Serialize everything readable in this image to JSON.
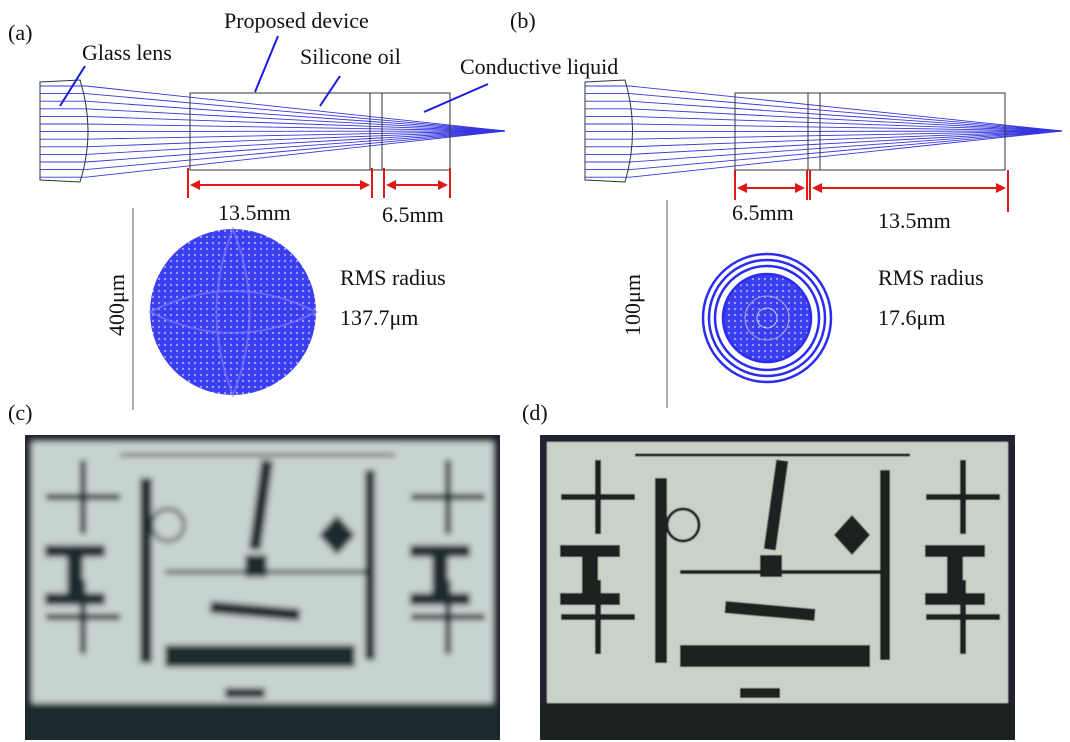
{
  "panels": {
    "a": {
      "label": "(a)",
      "annotations": [
        "Glass lens",
        "Proposed device",
        "Silicone oil",
        "Conductive liquid"
      ],
      "dimensions": [
        "13.5mm",
        "6.5mm"
      ],
      "scale_bar": "400μm",
      "rms_label": "RMS radius",
      "rms_value": "137.7μm"
    },
    "b": {
      "label": "(b)",
      "dimensions": [
        "6.5mm",
        "13.5mm"
      ],
      "scale_bar": "100μm",
      "rms_label": "RMS radius",
      "rms_value": "17.6μm"
    },
    "c": {
      "label": "(c)"
    },
    "d": {
      "label": "(d)"
    }
  }
}
